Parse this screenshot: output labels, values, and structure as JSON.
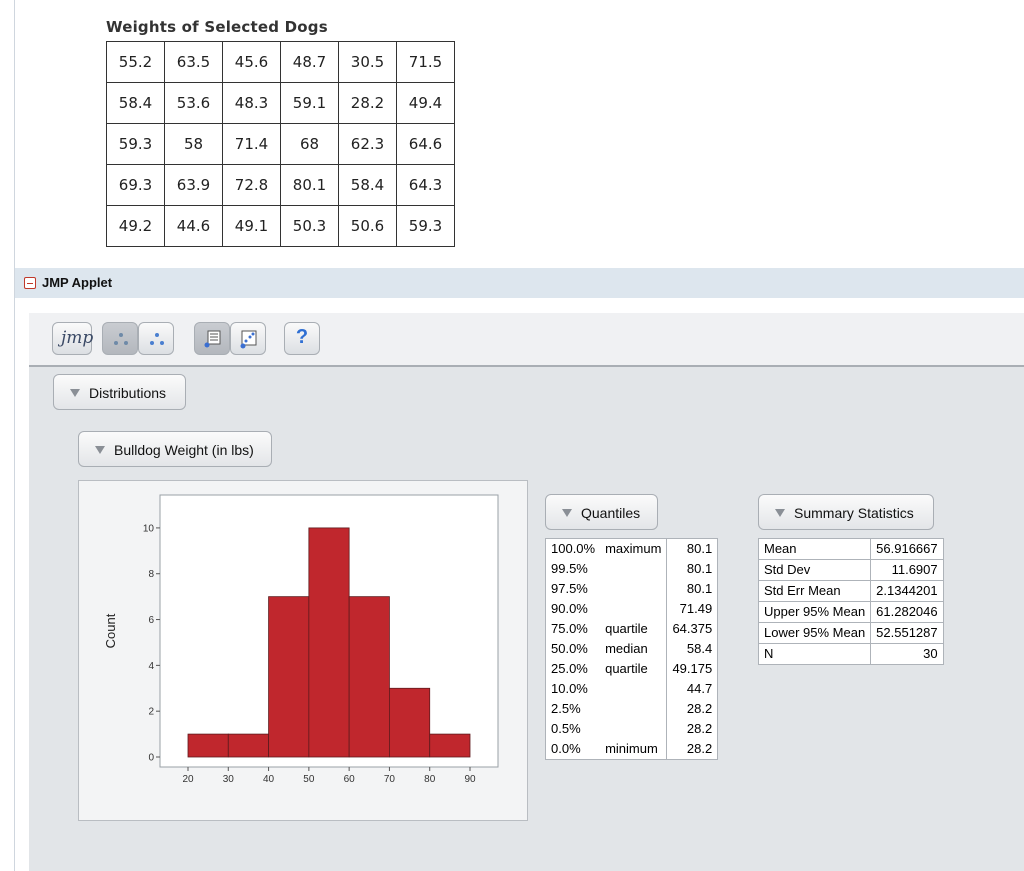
{
  "weights_table": {
    "title": "Weights of Selected Dogs",
    "rows": [
      [
        "55.2",
        "63.5",
        "45.6",
        "48.7",
        "30.5",
        "71.5"
      ],
      [
        "58.4",
        "53.6",
        "48.3",
        "59.1",
        "28.2",
        "49.4"
      ],
      [
        "59.3",
        "58",
        "71.4",
        "68",
        "62.3",
        "64.6"
      ],
      [
        "69.3",
        "63.9",
        "72.8",
        "80.1",
        "58.4",
        "64.3"
      ],
      [
        "49.2",
        "44.6",
        "49.1",
        "50.3",
        "50.6",
        "59.3"
      ]
    ]
  },
  "applet": {
    "title": "JMP Applet",
    "toolbar": {
      "logo_text": "jmp",
      "icons": [
        "jmp-logo-icon",
        "scatter-dots-icon",
        "scatter-dots-icon",
        "text-report-icon",
        "graph-report-icon",
        "help-icon"
      ],
      "help_label": "?"
    },
    "distributions_label": "Distributions",
    "variable_label": "Bulldog Weight (in lbs)"
  },
  "chart_data": {
    "type": "bar",
    "bins": [
      [
        20,
        30
      ],
      [
        30,
        40
      ],
      [
        40,
        50
      ],
      [
        50,
        60
      ],
      [
        60,
        70
      ],
      [
        70,
        80
      ],
      [
        80,
        90
      ]
    ],
    "values": [
      1,
      1,
      7,
      10,
      7,
      3,
      1
    ],
    "xticks": [
      "20",
      "30",
      "40",
      "50",
      "60",
      "70",
      "80",
      "90"
    ],
    "yticks": [
      "0",
      "2",
      "4",
      "6",
      "8",
      "10"
    ],
    "ylabel": "Count",
    "xlim": [
      20,
      90
    ],
    "ylim": [
      0,
      11
    ],
    "bar_color": "#c0272d"
  },
  "quantiles": {
    "header": "Quantiles",
    "rows": [
      {
        "pct": "100.0%",
        "label": "maximum",
        "value": "80.1"
      },
      {
        "pct": "99.5%",
        "label": "",
        "value": "80.1"
      },
      {
        "pct": "97.5%",
        "label": "",
        "value": "80.1"
      },
      {
        "pct": "90.0%",
        "label": "",
        "value": "71.49"
      },
      {
        "pct": "75.0%",
        "label": "quartile",
        "value": "64.375"
      },
      {
        "pct": "50.0%",
        "label": "median",
        "value": "58.4"
      },
      {
        "pct": "25.0%",
        "label": "quartile",
        "value": "49.175"
      },
      {
        "pct": "10.0%",
        "label": "",
        "value": "44.7"
      },
      {
        "pct": "2.5%",
        "label": "",
        "value": "28.2"
      },
      {
        "pct": "0.5%",
        "label": "",
        "value": "28.2"
      },
      {
        "pct": "0.0%",
        "label": "minimum",
        "value": "28.2"
      }
    ]
  },
  "summary_statistics": {
    "header": "Summary Statistics",
    "rows": [
      {
        "label": "Mean",
        "value": "56.916667"
      },
      {
        "label": "Std Dev",
        "value": "11.6907"
      },
      {
        "label": "Std Err Mean",
        "value": "2.1344201"
      },
      {
        "label": "Upper 95% Mean",
        "value": "61.282046"
      },
      {
        "label": "Lower 95% Mean",
        "value": "52.551287"
      },
      {
        "label": "N",
        "value": "30"
      }
    ]
  }
}
